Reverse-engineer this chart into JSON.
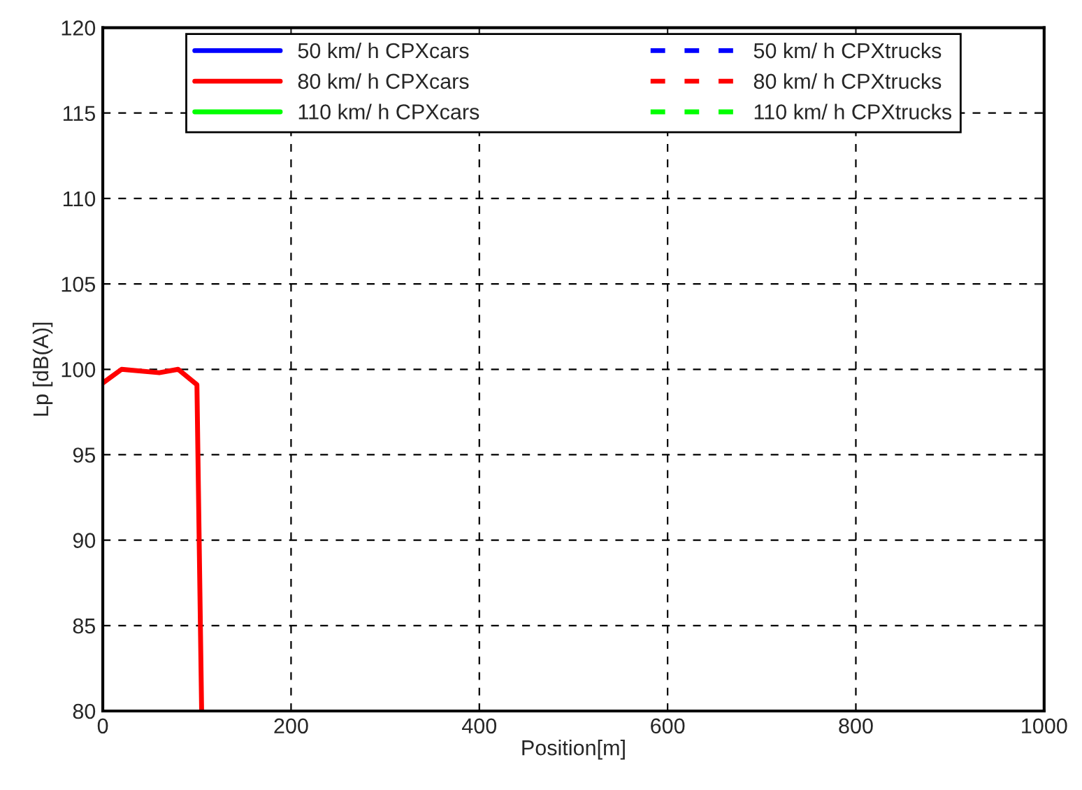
{
  "chart_data": {
    "type": "line",
    "xlabel": "Position[m]",
    "ylabel": "Lp [dB(A)]",
    "xlim": [
      0,
      1000
    ],
    "xticks": [
      0,
      200,
      400,
      600,
      800,
      1000
    ],
    "ylim": [
      80,
      120
    ],
    "yticks": [
      80,
      85,
      90,
      95,
      100,
      105,
      110,
      115,
      120
    ],
    "grid": true,
    "legend": "top",
    "series": [
      {
        "name": "50 km/ h CPXcars",
        "color": "#0000ff",
        "line_style": "solid"
      },
      {
        "name": "50 km/ h CPXtrucks",
        "color": "#0000ff",
        "line_style": "dashed"
      },
      {
        "name": "80 km/ h CPXcars",
        "color": "#ff0000",
        "line_style": "solid",
        "x": [
          0,
          20,
          60,
          80,
          100,
          105
        ],
        "values": [
          99.2,
          100,
          99.8,
          100,
          99.1,
          80
        ]
      },
      {
        "name": "80 km/ h CPXtrucks",
        "color": "#ff0000",
        "line_style": "dashed"
      },
      {
        "name": "110 km/ h CPXcars",
        "color": "#00ff00",
        "line_style": "solid"
      },
      {
        "name": "110 km/ h CPXtrucks",
        "color": "#00ff00",
        "line_style": "dashed"
      }
    ]
  }
}
